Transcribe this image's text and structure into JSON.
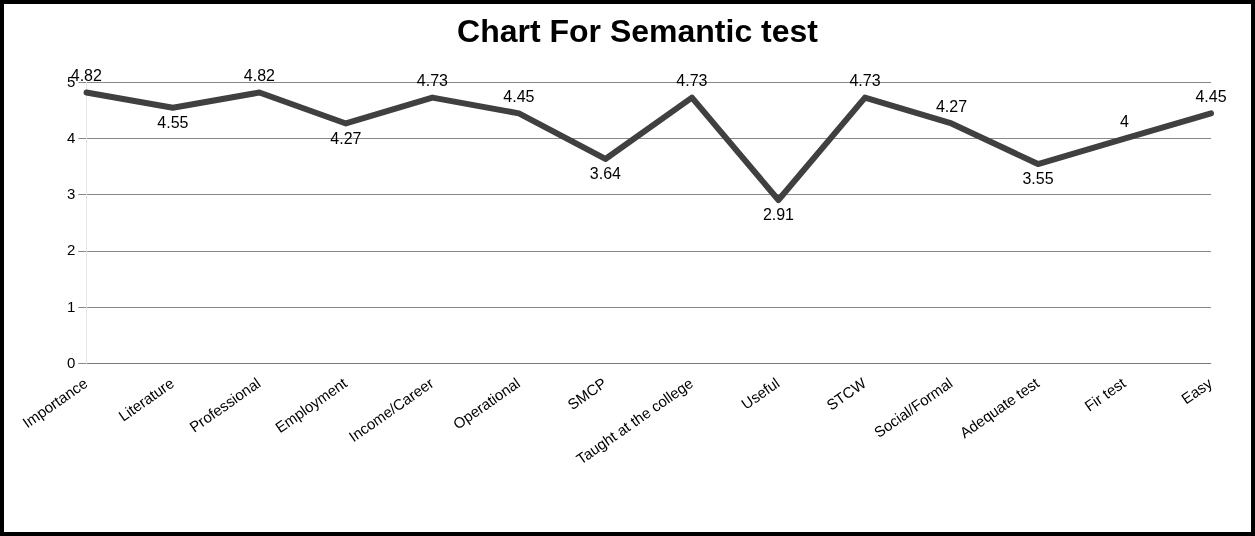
{
  "chart_data": {
    "type": "line",
    "title": "Chart For Semantic test",
    "categories": [
      "Importance",
      "Literature",
      "Professional",
      "Employment",
      "Income/Career",
      "Operational",
      "SMCP",
      "Taught at the college",
      "Useful",
      "STCW",
      "Social/Formal",
      "Adequate test",
      "Fir test",
      "Easy"
    ],
    "values": [
      4.82,
      4.55,
      4.82,
      4.27,
      4.73,
      4.45,
      3.64,
      4.73,
      2.91,
      4.73,
      4.27,
      3.55,
      4,
      4.45
    ],
    "color": "#404040",
    "ylim": [
      0,
      5
    ],
    "yticks": [
      0,
      1,
      2,
      3,
      4,
      5
    ],
    "grid": "y",
    "data_labels": true,
    "marker": "none",
    "line_style": "solid"
  }
}
